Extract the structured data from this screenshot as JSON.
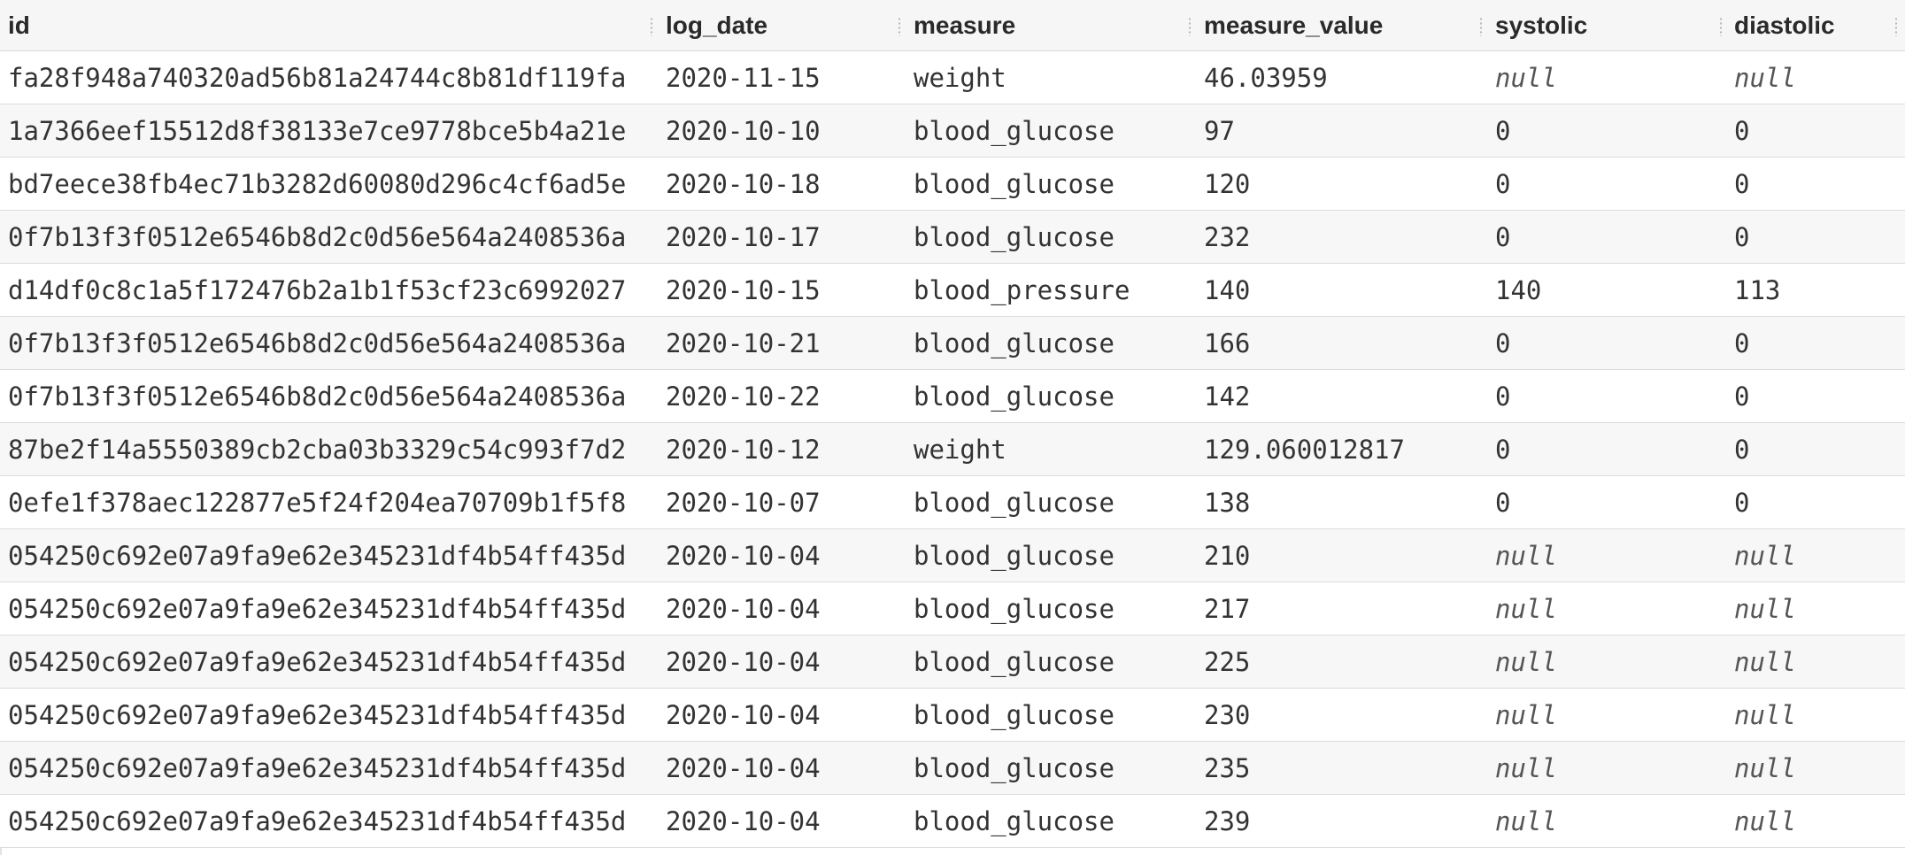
{
  "table": {
    "columns": [
      "id",
      "log_date",
      "measure",
      "measure_value",
      "systolic",
      "diastolic"
    ],
    "rows": [
      [
        "fa28f948a740320ad56b81a24744c8b81df119fa",
        "2020-11-15",
        "weight",
        "46.03959",
        "null",
        "null"
      ],
      [
        "1a7366eef15512d8f38133e7ce9778bce5b4a21e",
        "2020-10-10",
        "blood_glucose",
        "97",
        "0",
        "0"
      ],
      [
        "bd7eece38fb4ec71b3282d60080d296c4cf6ad5e",
        "2020-10-18",
        "blood_glucose",
        "120",
        "0",
        "0"
      ],
      [
        "0f7b13f3f0512e6546b8d2c0d56e564a2408536a",
        "2020-10-17",
        "blood_glucose",
        "232",
        "0",
        "0"
      ],
      [
        "d14df0c8c1a5f172476b2a1b1f53cf23c6992027",
        "2020-10-15",
        "blood_pressure",
        "140",
        "140",
        "113"
      ],
      [
        "0f7b13f3f0512e6546b8d2c0d56e564a2408536a",
        "2020-10-21",
        "blood_glucose",
        "166",
        "0",
        "0"
      ],
      [
        "0f7b13f3f0512e6546b8d2c0d56e564a2408536a",
        "2020-10-22",
        "blood_glucose",
        "142",
        "0",
        "0"
      ],
      [
        "87be2f14a5550389cb2cba03b3329c54c993f7d2",
        "2020-10-12",
        "weight",
        "129.060012817",
        "0",
        "0"
      ],
      [
        "0efe1f378aec122877e5f24f204ea70709b1f5f8",
        "2020-10-07",
        "blood_glucose",
        "138",
        "0",
        "0"
      ],
      [
        "054250c692e07a9fa9e62e345231df4b54ff435d",
        "2020-10-04",
        "blood_glucose",
        "210",
        "null",
        "null"
      ],
      [
        "054250c692e07a9fa9e62e345231df4b54ff435d",
        "2020-10-04",
        "blood_glucose",
        "217",
        "null",
        "null"
      ],
      [
        "054250c692e07a9fa9e62e345231df4b54ff435d",
        "2020-10-04",
        "blood_glucose",
        "225",
        "null",
        "null"
      ],
      [
        "054250c692e07a9fa9e62e345231df4b54ff435d",
        "2020-10-04",
        "blood_glucose",
        "230",
        "null",
        "null"
      ],
      [
        "054250c692e07a9fa9e62e345231df4b54ff435d",
        "2020-10-04",
        "blood_glucose",
        "235",
        "null",
        "null"
      ],
      [
        "054250c692e07a9fa9e62e345231df4b54ff435d",
        "2020-10-04",
        "blood_glucose",
        "239",
        "null",
        "null"
      ]
    ]
  }
}
